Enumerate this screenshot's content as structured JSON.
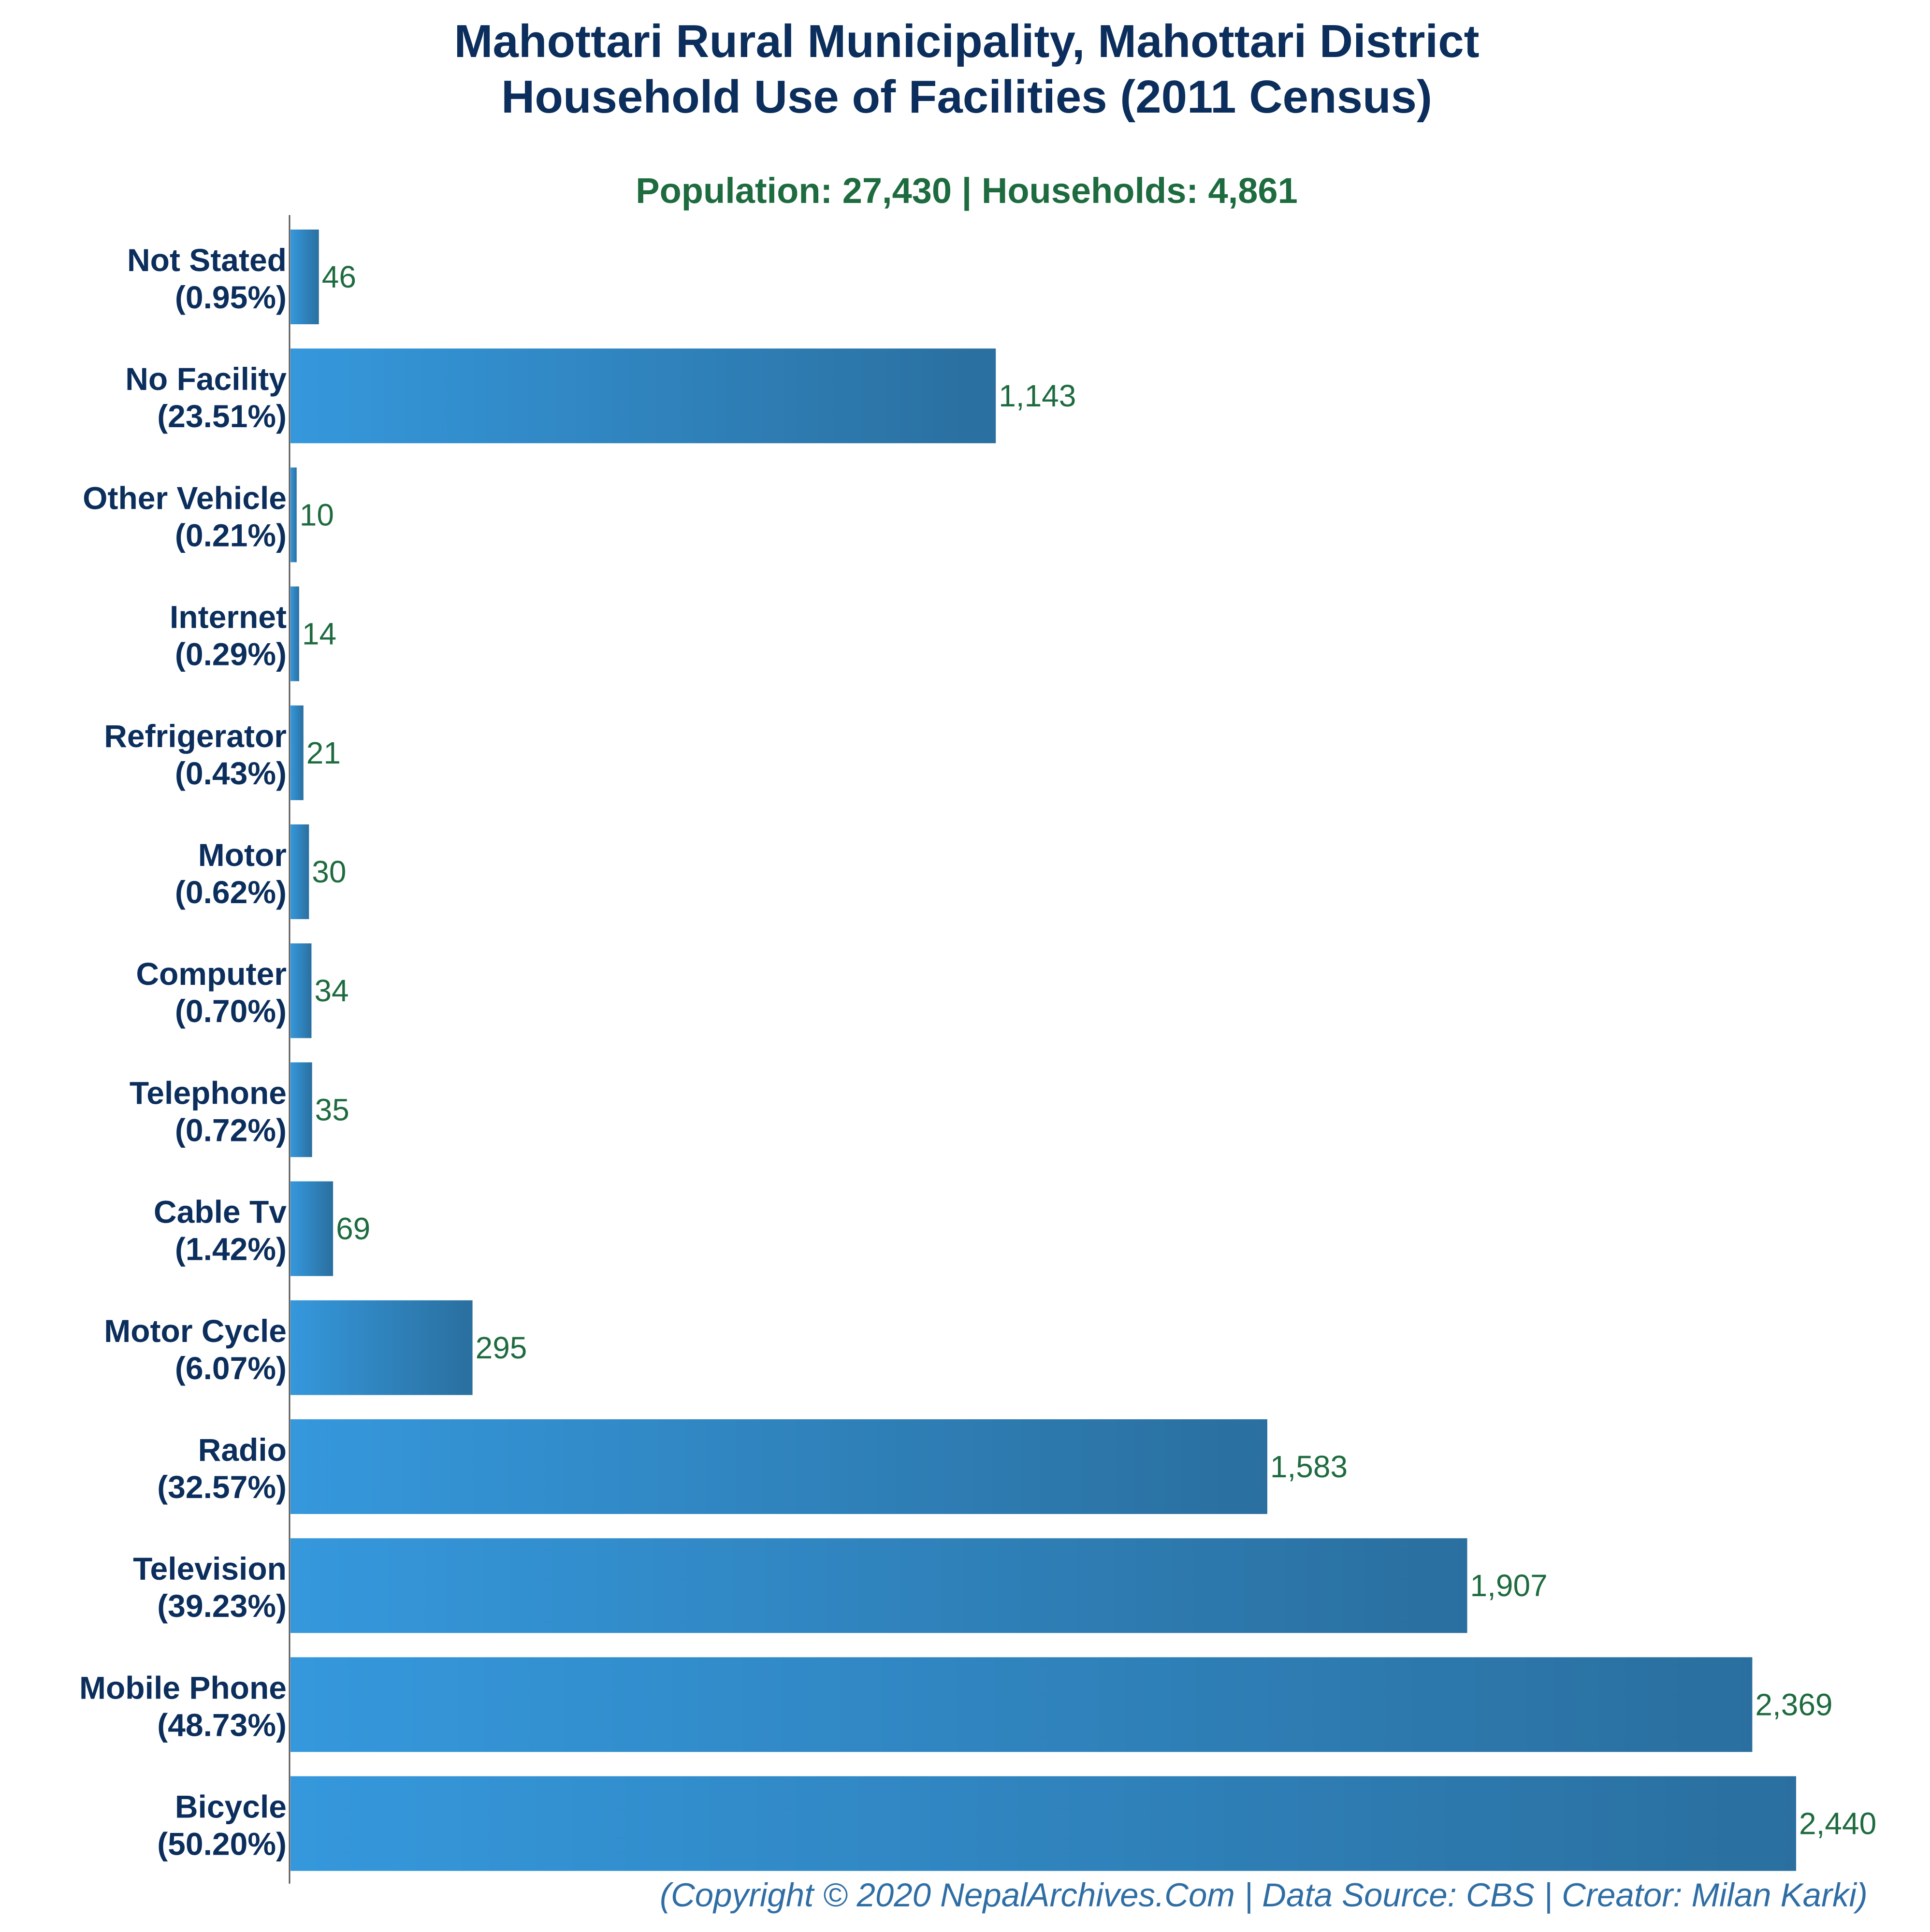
{
  "chart_data": {
    "type": "bar",
    "orientation": "horizontal",
    "title_line1": "Mahottari Rural Municipality, Mahottari District",
    "title_line2": "Household Use of Facilities (2011 Census)",
    "subtitle": "Population: 27,430 | Households: 4,861",
    "footer": "(Copyright © 2020 NepalArchives.Com | Data Source: CBS | Creator: Milan Karki)",
    "categories": [
      "Not Stated",
      "No Facility",
      "Other Vehicle",
      "Internet",
      "Refrigerator",
      "Motor",
      "Computer",
      "Telephone",
      "Cable Tv",
      "Motor Cycle",
      "Radio",
      "Television",
      "Mobile Phone",
      "Bicycle"
    ],
    "percent_labels": [
      "(0.95%)",
      "(23.51%)",
      "(0.21%)",
      "(0.29%)",
      "(0.43%)",
      "(0.62%)",
      "(0.70%)",
      "(0.72%)",
      "(1.42%)",
      "(6.07%)",
      "(32.57%)",
      "(39.23%)",
      "(48.73%)",
      "(50.20%)"
    ],
    "values": [
      46,
      1143,
      10,
      14,
      21,
      30,
      34,
      35,
      69,
      295,
      1583,
      1907,
      2369,
      2440
    ],
    "value_labels": [
      "46",
      "1,143",
      "10",
      "14",
      "21",
      "30",
      "34",
      "35",
      "69",
      "295",
      "1,583",
      "1,907",
      "2,369",
      "2,440"
    ],
    "xlim": [
      0,
      2440
    ],
    "grid": false,
    "legend": "none",
    "colors": {
      "title": "#0b2e5c",
      "subtitle": "#1e6b3f",
      "category_label": "#0b2e5c",
      "value_label": "#1e6b3f",
      "bar_light": "#3598dc",
      "bar_dark": "#2a6f9f",
      "axis": "#555555",
      "footer": "#2f6ea5"
    }
  }
}
